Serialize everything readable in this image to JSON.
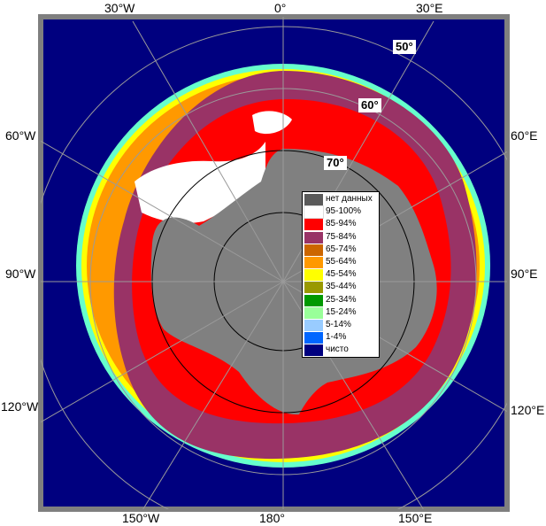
{
  "map": {
    "longitude_labels": {
      "top": [
        "30°W",
        "0°",
        "30°E"
      ],
      "left": [
        "60°W",
        "90°W",
        "120°W"
      ],
      "right": [
        "60°E",
        "90°E",
        "120°E"
      ],
      "bottom": [
        "150°W",
        "180°",
        "150°E"
      ]
    },
    "latitude_labels": [
      "50°",
      "60°",
      "70°"
    ],
    "colors": {
      "ocean": "#00007f",
      "land_no_data": "#808080",
      "frame": "#7f7f7f",
      "grid": "#9a9a9a"
    }
  },
  "legend": {
    "items": [
      {
        "label": "нет данных",
        "color": "#5a5a5a"
      },
      {
        "label": "95-100%",
        "color": "#ffffff"
      },
      {
        "label": "85-94%",
        "color": "#ff0000"
      },
      {
        "label": "75-84%",
        "color": "#993366"
      },
      {
        "label": "65-74%",
        "color": "#cc6600"
      },
      {
        "label": "55-64%",
        "color": "#ff9900"
      },
      {
        "label": "45-54%",
        "color": "#ffff00"
      },
      {
        "label": "35-44%",
        "color": "#999900"
      },
      {
        "label": "25-34%",
        "color": "#009900"
      },
      {
        "label": "15-24%",
        "color": "#99ff99"
      },
      {
        "label": "5-14%",
        "color": "#99ccff"
      },
      {
        "label": "1-4%",
        "color": "#0066ff"
      },
      {
        "label": "чисто",
        "color": "#00007f"
      }
    ]
  }
}
